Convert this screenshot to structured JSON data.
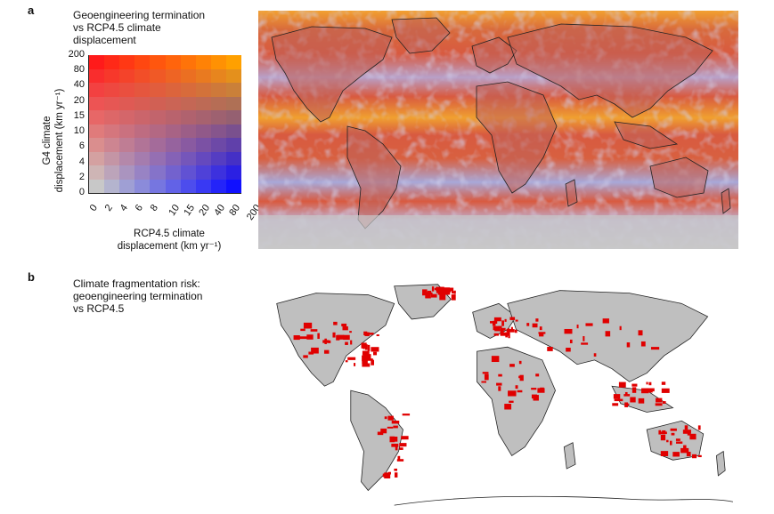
{
  "panels": {
    "a": {
      "letter": "a",
      "title": "Geoengineering termination\nvs RCP4.5 climate\ndisplacement",
      "ylabel": "G4 climate\ndisplacement (km yr⁻¹)",
      "xlabel": "RCP4.5 climate\ndisplacement (km yr⁻¹)",
      "yticks": [
        "200",
        "80",
        "40",
        "20",
        "15",
        "10",
        "6",
        "4",
        "2",
        "0"
      ],
      "xticks": [
        "0",
        "2",
        "4",
        "6",
        "8",
        "10",
        "15",
        "20",
        "40",
        "80",
        "200"
      ]
    },
    "b": {
      "letter": "b",
      "title": "Climate fragmentation risk:\ngeoengineering termination\nvs RCP4.5"
    }
  },
  "colors": {
    "legend_top_left": "#ff1a1a",
    "legend_top_right": "#ffa000",
    "legend_bottom_left": "#c8c8c8",
    "legend_bottom_right": "#1010ff",
    "land_gray": "#bfbfbf",
    "risk_red": "#e00000",
    "ocean_orange": "#f2a030",
    "ocean_red": "#d85a40",
    "ocean_lavender": "#a8a8d8"
  }
}
